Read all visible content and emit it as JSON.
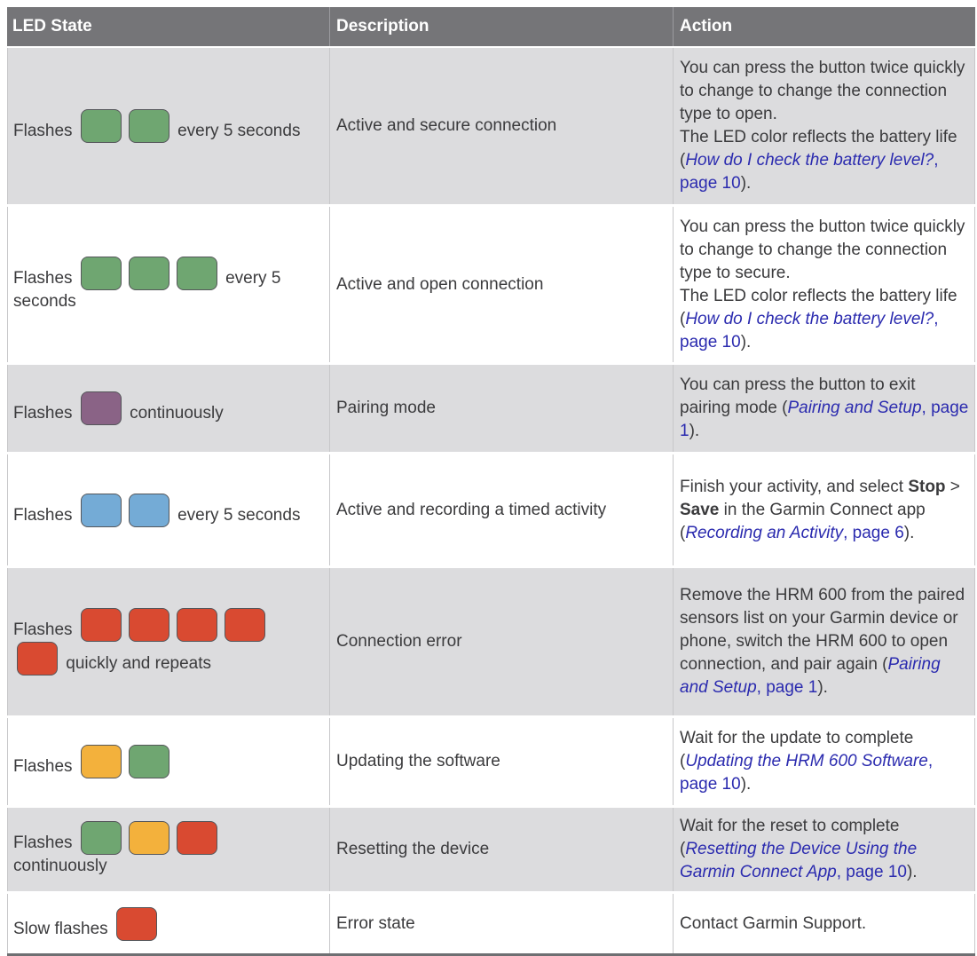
{
  "table": {
    "header": [
      "LED State",
      "Description",
      "Action"
    ],
    "led_colors": {
      "green": "#6fa671",
      "blue": "#74abd6",
      "purple": "#8a6386",
      "red": "#d94a31",
      "yellow": "#f3b13c"
    },
    "colors": {
      "header_bg": "#757578",
      "header_text": "#ffffff",
      "row_alt_bg": "#dcdcde",
      "row_bg": "#ffffff",
      "body_text": "#3b3b3d",
      "link": "#2b2baf",
      "led_border": "#55565a"
    },
    "rows": [
      {
        "led": [
          {
            "t": "Flashes "
          },
          {
            "led": "green"
          },
          {
            "led": "green"
          },
          {
            "t": " every 5 seconds"
          }
        ],
        "description": "Active and secure connection",
        "action": [
          [
            {
              "t": "You can press the button twice quickly to change to change the connection type to open."
            }
          ],
          [
            {
              "t": "The LED color reflects the battery life ("
            },
            {
              "t": "How do I check the battery level?",
              "s": "link-italic"
            },
            {
              "t": ", page 10",
              "s": "link"
            },
            {
              "t": ")."
            }
          ]
        ]
      },
      {
        "led": [
          {
            "t": "Flashes "
          },
          {
            "led": "green"
          },
          {
            "led": "green"
          },
          {
            "led": "green"
          },
          {
            "t": " every 5 seconds"
          }
        ],
        "description": "Active and open connection",
        "action": [
          [
            {
              "t": "You can press the button twice quickly to change to change the connection type to secure."
            }
          ],
          [
            {
              "t": "The LED color reflects the battery life ("
            },
            {
              "t": "How do I check the battery level?",
              "s": "link-italic"
            },
            {
              "t": ", page 10",
              "s": "link"
            },
            {
              "t": ")."
            }
          ]
        ]
      },
      {
        "led": [
          {
            "t": "Flashes "
          },
          {
            "led": "purple"
          },
          {
            "t": " continuously"
          }
        ],
        "description": "Pairing mode",
        "action": [
          [
            {
              "t": "You can press the button to exit pairing mode ("
            },
            {
              "t": "Pairing and Setup",
              "s": "link-italic"
            },
            {
              "t": ", page 1",
              "s": "link"
            },
            {
              "t": ")."
            }
          ]
        ]
      },
      {
        "led": [
          {
            "t": "Flashes "
          },
          {
            "led": "blue"
          },
          {
            "led": "blue"
          },
          {
            "t": " every 5 seconds"
          }
        ],
        "description": "Active and recording a timed activity",
        "action": [
          [
            {
              "t": "Finish your activity, and select "
            },
            {
              "t": "Stop",
              "s": "bold"
            },
            {
              "t": " > "
            },
            {
              "t": "Save",
              "s": "bold"
            },
            {
              "t": " in the Garmin Connect app ("
            },
            {
              "t": "Recording an Activity",
              "s": "link-italic"
            },
            {
              "t": ", page 6",
              "s": "link"
            },
            {
              "t": ")."
            }
          ]
        ]
      },
      {
        "led": [
          {
            "t": "Flashes "
          },
          {
            "led": "red"
          },
          {
            "led": "red"
          },
          {
            "led": "red"
          },
          {
            "led": "red"
          },
          {
            "led": "red"
          },
          {
            "t": " quickly and repeats"
          }
        ],
        "description": "Connection error",
        "action": [
          [
            {
              "t": "Remove the HRM 600 from the paired sensors list on your Garmin device or phone, switch the HRM 600 to open connection, and pair again ("
            },
            {
              "t": "Pairing and Setup",
              "s": "link-italic"
            },
            {
              "t": ", page 1",
              "s": "link"
            },
            {
              "t": ")."
            }
          ]
        ]
      },
      {
        "led": [
          {
            "t": "Flashes "
          },
          {
            "led": "yellow"
          },
          {
            "led": "green"
          }
        ],
        "description": "Updating the software",
        "action": [
          [
            {
              "t": "Wait for the update to complete ("
            },
            {
              "t": "Updating the HRM 600 Software",
              "s": "link-italic"
            },
            {
              "t": ", page 10",
              "s": "link"
            },
            {
              "t": ")."
            }
          ]
        ]
      },
      {
        "led": [
          {
            "t": "Flashes "
          },
          {
            "led": "green"
          },
          {
            "led": "yellow"
          },
          {
            "led": "red"
          },
          {
            "t": " continuously"
          }
        ],
        "description": "Resetting the device",
        "action": [
          [
            {
              "t": "Wait for the reset to complete ("
            },
            {
              "t": "Resetting the Device Using the Garmin Connect App",
              "s": "link-italic"
            },
            {
              "t": ", page 10",
              "s": "link"
            },
            {
              "t": ")."
            }
          ]
        ]
      },
      {
        "led": [
          {
            "t": "Slow flashes "
          },
          {
            "led": "red"
          }
        ],
        "description": "Error state",
        "action": [
          [
            {
              "t": "Contact Garmin Support."
            }
          ]
        ]
      }
    ]
  }
}
